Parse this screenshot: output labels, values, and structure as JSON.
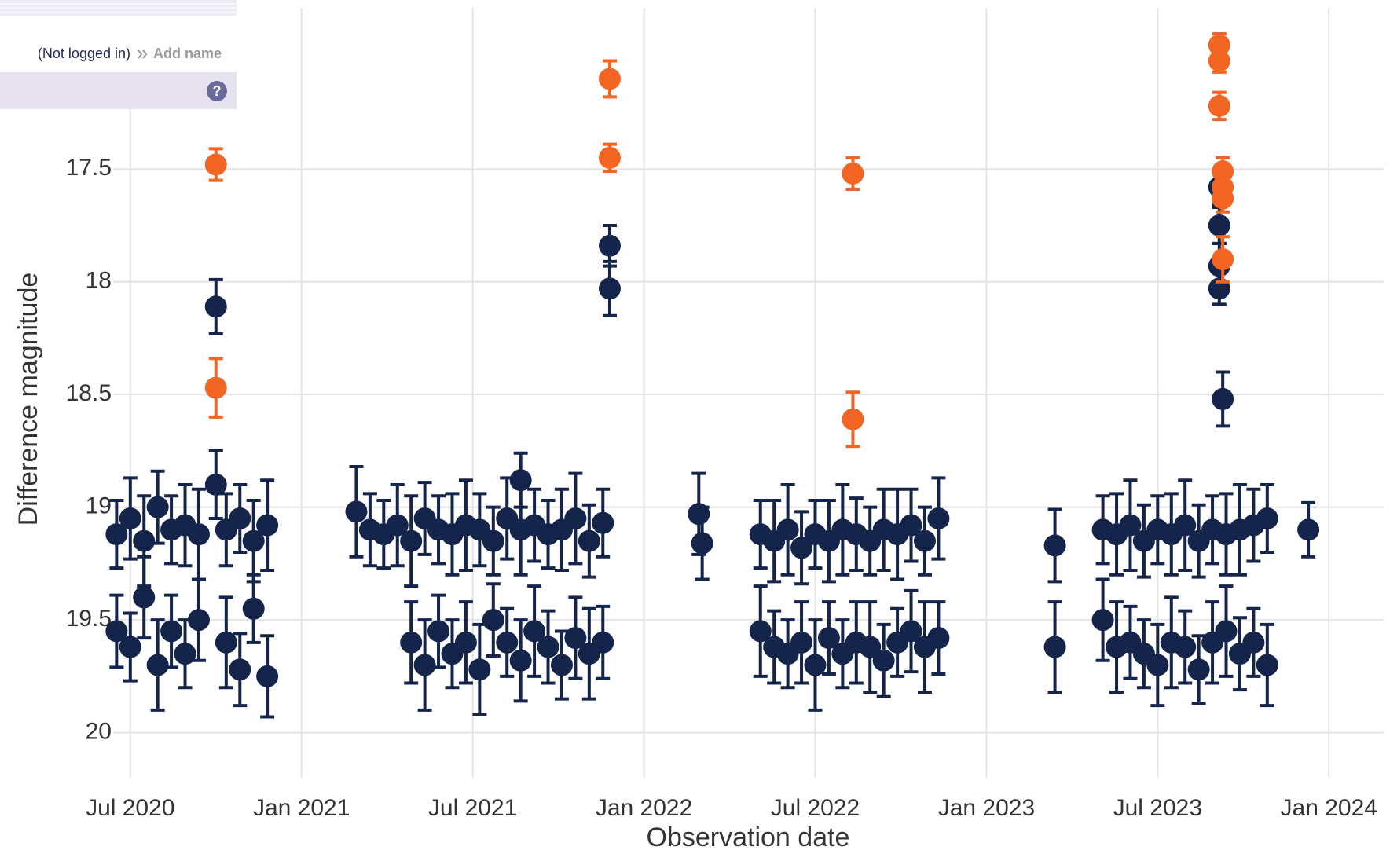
{
  "header": {
    "login_status": "(Not logged in)",
    "add_name": "Add name",
    "help": "?"
  },
  "chart_data": {
    "type": "scatter",
    "x_label": "Observation date",
    "y_label": "Difference magnitude",
    "xlim": [
      2020.45,
      2024.16
    ],
    "ylim": [
      20.2,
      16.75
    ],
    "xticks": [
      {
        "value": 2020.5,
        "label": "Jul 2020"
      },
      {
        "value": 2021.0,
        "label": "Jan 2021"
      },
      {
        "value": 2021.5,
        "label": "Jul 2021"
      },
      {
        "value": 2022.0,
        "label": "Jan 2022"
      },
      {
        "value": 2022.5,
        "label": "Jul 2022"
      },
      {
        "value": 2023.0,
        "label": "Jan 2023"
      },
      {
        "value": 2023.5,
        "label": "Jul 2023"
      },
      {
        "value": 2024.0,
        "label": "Jan 2024"
      }
    ],
    "yticks": [
      17.5,
      18,
      18.5,
      19,
      19.5,
      20
    ],
    "grid": true,
    "series": [
      {
        "color": "#14244a",
        "x": [
          2020.75,
          2020.75,
          2021.9,
          2021.9,
          2021.64,
          2023.68,
          2023.68,
          2023.68,
          2023.68,
          2023.69,
          2023.94,
          2022.16,
          2022.17,
          2023.2,
          2023.2,
          2020.46,
          2020.5,
          2020.54,
          2020.58,
          2020.62,
          2020.66,
          2020.7,
          2020.78,
          2020.82,
          2020.86,
          2020.9,
          2020.46,
          2020.5,
          2020.54,
          2020.58,
          2020.62,
          2020.66,
          2020.7,
          2020.78,
          2020.82,
          2020.86,
          2020.9,
          2021.16,
          2021.2,
          2021.24,
          2021.28,
          2021.32,
          2021.36,
          2021.4,
          2021.44,
          2021.48,
          2021.52,
          2021.56,
          2021.6,
          2021.64,
          2021.68,
          2021.72,
          2021.76,
          2021.8,
          2021.84,
          2021.88,
          2021.32,
          2021.36,
          2021.4,
          2021.44,
          2021.48,
          2021.52,
          2021.56,
          2021.6,
          2021.64,
          2021.68,
          2021.72,
          2021.76,
          2021.8,
          2021.84,
          2021.88,
          2022.34,
          2022.38,
          2022.42,
          2022.46,
          2022.5,
          2022.54,
          2022.58,
          2022.62,
          2022.66,
          2022.7,
          2022.74,
          2022.78,
          2022.82,
          2022.86,
          2022.34,
          2022.38,
          2022.42,
          2022.46,
          2022.5,
          2022.54,
          2022.58,
          2022.62,
          2022.66,
          2022.7,
          2022.74,
          2022.78,
          2022.82,
          2022.86,
          2023.34,
          2023.38,
          2023.42,
          2023.46,
          2023.5,
          2023.54,
          2023.58,
          2023.62,
          2023.66,
          2023.7,
          2023.74,
          2023.78,
          2023.82,
          2023.34,
          2023.38,
          2023.42,
          2023.46,
          2023.5,
          2023.54,
          2023.58,
          2023.62,
          2023.66,
          2023.7,
          2023.74,
          2023.78,
          2023.82
        ],
        "values": [
          18.11,
          18.9,
          17.84,
          18.03,
          18.88,
          17.58,
          17.75,
          17.93,
          18.03,
          18.52,
          19.1,
          19.03,
          19.16,
          19.17,
          19.62,
          19.12,
          19.05,
          19.15,
          19.0,
          19.1,
          19.08,
          19.12,
          19.1,
          19.05,
          19.15,
          19.08,
          19.55,
          19.62,
          19.4,
          19.7,
          19.55,
          19.65,
          19.5,
          19.6,
          19.72,
          19.45,
          19.75,
          19.02,
          19.1,
          19.12,
          19.08,
          19.15,
          19.05,
          19.1,
          19.12,
          19.08,
          19.1,
          19.15,
          19.05,
          19.1,
          19.08,
          19.12,
          19.1,
          19.05,
          19.15,
          19.07,
          19.6,
          19.7,
          19.55,
          19.65,
          19.6,
          19.72,
          19.5,
          19.6,
          19.68,
          19.55,
          19.62,
          19.7,
          19.58,
          19.65,
          19.6,
          19.12,
          19.15,
          19.1,
          19.18,
          19.12,
          19.15,
          19.1,
          19.12,
          19.15,
          19.1,
          19.12,
          19.08,
          19.15,
          19.05,
          19.55,
          19.62,
          19.65,
          19.6,
          19.7,
          19.58,
          19.65,
          19.6,
          19.62,
          19.68,
          19.6,
          19.55,
          19.62,
          19.58,
          19.1,
          19.12,
          19.08,
          19.15,
          19.1,
          19.12,
          19.08,
          19.15,
          19.1,
          19.12,
          19.1,
          19.08,
          19.05,
          19.5,
          19.62,
          19.6,
          19.65,
          19.7,
          19.6,
          19.62,
          19.72,
          19.6,
          19.55,
          19.65,
          19.6,
          19.7
        ],
        "errors": [
          0.12,
          0.15,
          0.09,
          0.12,
          0.12,
          0.08,
          0.08,
          0.1,
          0.07,
          0.12,
          0.12,
          0.18,
          0.16,
          0.16,
          0.2,
          0.15,
          0.18,
          0.2,
          0.16,
          0.15,
          0.18,
          0.2,
          0.16,
          0.15,
          0.18,
          0.2,
          0.16,
          0.15,
          0.18,
          0.2,
          0.16,
          0.15,
          0.18,
          0.2,
          0.16,
          0.15,
          0.18,
          0.2,
          0.16,
          0.15,
          0.18,
          0.2,
          0.16,
          0.15,
          0.18,
          0.2,
          0.16,
          0.15,
          0.18,
          0.2,
          0.16,
          0.15,
          0.18,
          0.2,
          0.16,
          0.15,
          0.18,
          0.2,
          0.16,
          0.15,
          0.18,
          0.2,
          0.16,
          0.15,
          0.18,
          0.2,
          0.16,
          0.15,
          0.18,
          0.2,
          0.16,
          0.15,
          0.18,
          0.2,
          0.16,
          0.15,
          0.18,
          0.2,
          0.16,
          0.15,
          0.18,
          0.2,
          0.16,
          0.15,
          0.18,
          0.2,
          0.16,
          0.15,
          0.18,
          0.2,
          0.16,
          0.15,
          0.18,
          0.2,
          0.16,
          0.15,
          0.18,
          0.2,
          0.16,
          0.15,
          0.18,
          0.2,
          0.16,
          0.15,
          0.18,
          0.2,
          0.16,
          0.15,
          0.18,
          0.2,
          0.16,
          0.15,
          0.18,
          0.2,
          0.16,
          0.15,
          0.18,
          0.2,
          0.16,
          0.15,
          0.18,
          0.2,
          0.16,
          0.15,
          0.18
        ]
      },
      {
        "color": "#f26522",
        "x": [
          2020.75,
          2020.75,
          2021.9,
          2021.9,
          2022.61,
          2022.61,
          2023.68,
          2023.68,
          2023.68,
          2023.69,
          2023.69,
          2023.69,
          2023.69
        ],
        "values": [
          17.48,
          18.47,
          17.1,
          17.45,
          17.52,
          18.61,
          16.95,
          17.02,
          17.22,
          17.51,
          17.58,
          17.63,
          17.9
        ],
        "errors": [
          0.07,
          0.13,
          0.08,
          0.06,
          0.07,
          0.12,
          0.05,
          0.05,
          0.06,
          0.06,
          0.06,
          0.06,
          0.1
        ]
      }
    ]
  }
}
